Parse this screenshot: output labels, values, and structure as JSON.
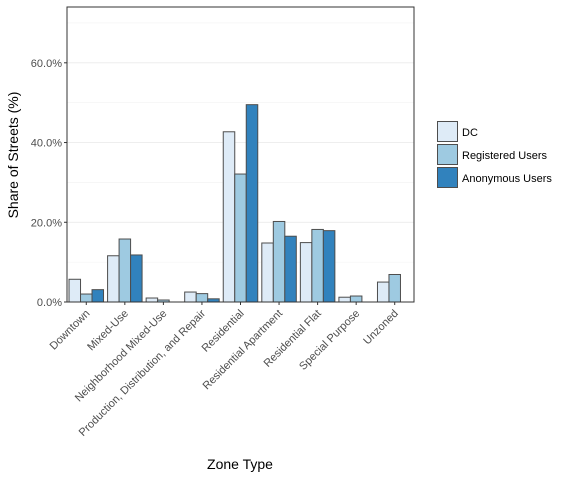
{
  "chart_data": {
    "type": "bar",
    "title": "",
    "xlabel": "Zone Type",
    "ylabel": "Share of Streets (%)",
    "ylim": [
      0,
      74
    ],
    "yticks": [
      0,
      20,
      40,
      60
    ],
    "ytick_labels": [
      "0.0%",
      "20.0%",
      "40.0%",
      "60.0%"
    ],
    "grid": true,
    "legend_position": "right",
    "categories": [
      "Downtown",
      "Mixed-Use",
      "Neighborhood Mixed-Use",
      "Production, Distribution, and Repair",
      "Residential",
      "Residential Apartment",
      "Residential Flat",
      "Special Purpose",
      "Unzoned"
    ],
    "series": [
      {
        "name": "DC",
        "color": "#deebf7",
        "values": [
          5.7,
          11.6,
          1.0,
          2.5,
          42.7,
          14.8,
          14.9,
          1.2,
          5.0
        ]
      },
      {
        "name": "Registered Users",
        "color": "#9ecae1",
        "values": [
          2.0,
          15.8,
          0.5,
          2.1,
          32.1,
          20.2,
          18.2,
          1.5,
          6.9
        ]
      },
      {
        "name": "Anonymous Users",
        "color": "#3182bd",
        "values": [
          3.1,
          11.8,
          0.0,
          0.8,
          49.5,
          16.5,
          17.9,
          0.0,
          0.0
        ]
      }
    ]
  }
}
